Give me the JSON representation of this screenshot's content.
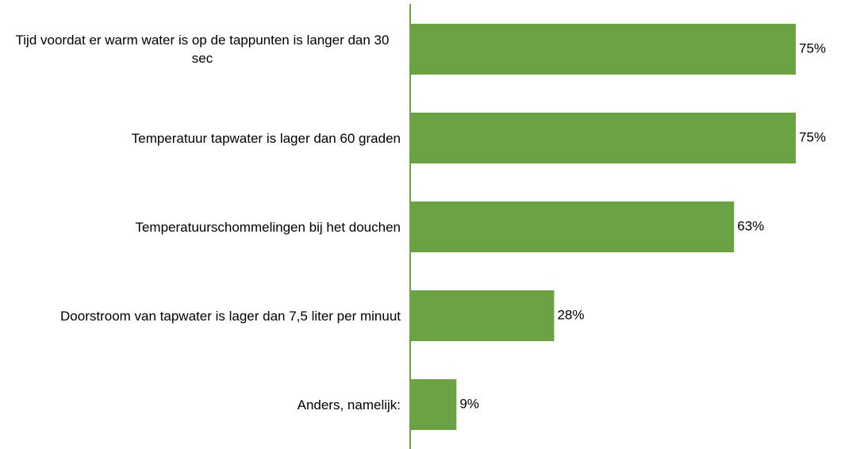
{
  "chart_data": {
    "type": "bar",
    "orientation": "horizontal",
    "categories": [
      "Tijd voordat er warm water is op de tappunten is langer dan 30 sec",
      "Temperatuur tapwater is lager dan 60 graden",
      "Temperatuurschommelingen bij het douchen",
      "Doorstroom van tapwater is lager dan 7,5 liter per minuut",
      "Anders, namelijk:"
    ],
    "values": [
      75,
      75,
      63,
      28,
      9
    ],
    "value_labels": [
      "75%",
      "75%",
      "63%",
      "28%",
      "9%"
    ],
    "color": "#6ba344"
  }
}
